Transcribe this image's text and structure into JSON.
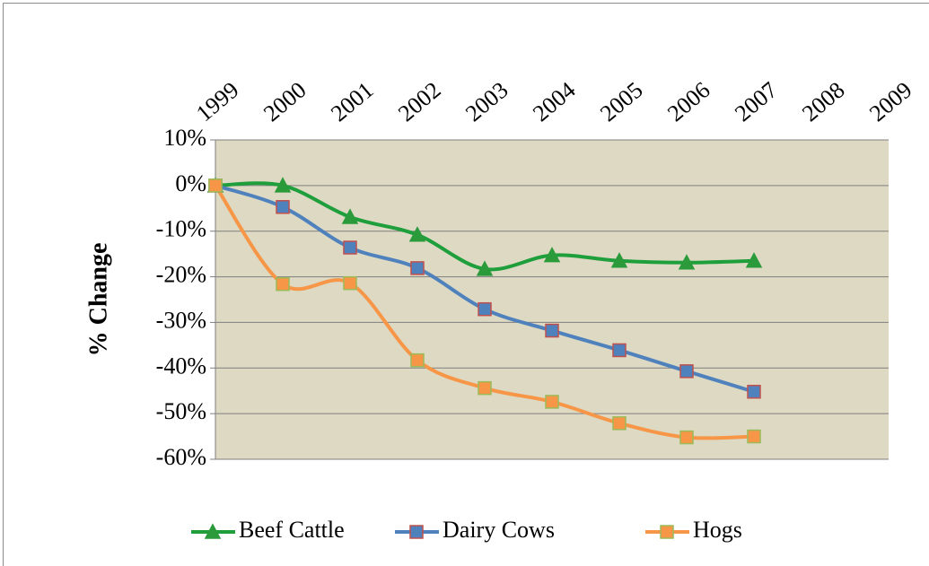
{
  "chart_data": {
    "type": "line",
    "y_label": "% Change",
    "categories": [
      "1999",
      "2000",
      "2001",
      "2002",
      "2003",
      "2004",
      "2005",
      "2006",
      "2007",
      "2008",
      "2009"
    ],
    "series": [
      {
        "name": "Beef Cattle",
        "color": "#1f9e3c",
        "marker": "triangle",
        "marker_fill": "#2a9a3a",
        "marker_stroke": "#2a9a3a",
        "values": [
          0,
          0,
          -6.9,
          -10.8,
          -18.3,
          -15.3,
          -16.5,
          -16.9,
          -16.5,
          null,
          null
        ]
      },
      {
        "name": "Dairy Cows",
        "color": "#4f81bd",
        "marker": "square",
        "marker_fill": "#4f81bd",
        "marker_stroke": "#c0504d",
        "values": [
          0,
          -4.7,
          -13.6,
          -18.1,
          -27.1,
          -31.8,
          -36.1,
          -40.7,
          -45.2,
          null,
          null
        ]
      },
      {
        "name": "Hogs",
        "color": "#f79646",
        "marker": "square",
        "marker_fill": "#f79646",
        "marker_stroke": "#9bbb59",
        "values": [
          0,
          -21.6,
          -21.4,
          -38.3,
          -44.4,
          -47.4,
          -52.1,
          -55.2,
          -55.0,
          null,
          null
        ]
      }
    ],
    "ylim": [
      -60,
      10
    ],
    "yticks": [
      {
        "value": 10,
        "label": "10%"
      },
      {
        "value": 0,
        "label": "0%"
      },
      {
        "value": -10,
        "label": "-10%"
      },
      {
        "value": -20,
        "label": "-20%"
      },
      {
        "value": -30,
        "label": "-30%"
      },
      {
        "value": -40,
        "label": "-40%"
      },
      {
        "value": -50,
        "label": "-50%"
      },
      {
        "value": -60,
        "label": "-60%"
      }
    ],
    "grid": true,
    "smooth": true,
    "legend": "bottom",
    "plot_background": "#ddd9c3"
  }
}
